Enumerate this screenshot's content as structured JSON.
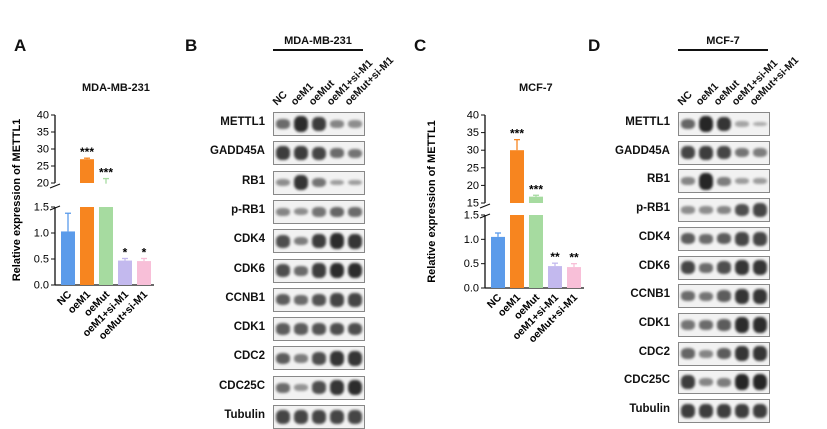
{
  "panels": {
    "A": {
      "letter": "A",
      "title": "MDA-MB-231",
      "ylabel": "Relative expression of METTL1",
      "upper_ticks": [
        "40",
        "35",
        "30",
        "25",
        "20"
      ],
      "lower_ticks": [
        "1.5",
        "1.0",
        "0.5",
        "0.0"
      ],
      "chart_data": {
        "type": "bar",
        "categories": [
          "NC",
          "oeM1",
          "oeMut",
          "oeM1+si-M1",
          "oeMut+si-M1"
        ],
        "values": [
          1.03,
          27.0,
          19.8,
          0.47,
          0.46
        ],
        "errors": [
          0.35,
          0.3,
          1.5,
          0.04,
          0.05
        ],
        "significance": [
          "",
          "***",
          "***",
          "*",
          "*"
        ],
        "colors": [
          "#5b9bea",
          "#f7851f",
          "#a6dba0",
          "#c3b9ee",
          "#f8bfd8"
        ],
        "broken_axis": {
          "lower": [
            0,
            1.5
          ],
          "upper": [
            20,
            40
          ]
        }
      }
    },
    "C": {
      "letter": "C",
      "title": "MCF-7",
      "ylabel": "Relative expression of METTL1",
      "upper_ticks": [
        "40",
        "35",
        "30",
        "25",
        "20",
        "15"
      ],
      "lower_ticks": [
        "1.5",
        "1.0",
        "0.5",
        "0.0"
      ],
      "chart_data": {
        "type": "bar",
        "categories": [
          "NC",
          "oeM1",
          "oeMut",
          "oeM1+si-M1",
          "oeMut+si-M1"
        ],
        "values": [
          1.05,
          30.0,
          16.8,
          0.45,
          0.43
        ],
        "errors": [
          0.08,
          3.0,
          0.4,
          0.06,
          0.07
        ],
        "significance": [
          "",
          "***",
          "***",
          "**",
          "**"
        ],
        "colors": [
          "#5b9bea",
          "#f7851f",
          "#a6dba0",
          "#c3b9ee",
          "#f8bfd8"
        ],
        "broken_axis": {
          "lower": [
            0,
            1.5
          ],
          "upper": [
            15,
            40
          ]
        }
      }
    },
    "B": {
      "letter": "B",
      "cell_line": "MDA-MB-231",
      "lanes": [
        "NC",
        "oeM1",
        "oeMut",
        "oeM1+si-M1",
        "oeMut+si-M1"
      ],
      "rows": [
        {
          "label": "METTL1",
          "bands": [
            0.5,
            0.9,
            0.8,
            0.35,
            0.3
          ]
        },
        {
          "label": "GADD45A",
          "bands": [
            0.8,
            0.8,
            0.75,
            0.5,
            0.45
          ]
        },
        {
          "label": "RB1",
          "bands": [
            0.3,
            0.85,
            0.45,
            0.2,
            0.2
          ]
        },
        {
          "label": "p-RB1",
          "bands": [
            0.35,
            0.3,
            0.45,
            0.55,
            0.5
          ]
        },
        {
          "label": "CDK4",
          "bands": [
            0.7,
            0.4,
            0.8,
            0.9,
            0.85
          ]
        },
        {
          "label": "CDK6",
          "bands": [
            0.7,
            0.5,
            0.8,
            0.9,
            0.9
          ]
        },
        {
          "label": "CCNB1",
          "bands": [
            0.6,
            0.5,
            0.65,
            0.75,
            0.75
          ]
        },
        {
          "label": "CDK1",
          "bands": [
            0.6,
            0.6,
            0.65,
            0.7,
            0.7
          ]
        },
        {
          "label": "CDC2",
          "bands": [
            0.6,
            0.4,
            0.7,
            0.85,
            0.85
          ]
        },
        {
          "label": "CDC25C",
          "bands": [
            0.5,
            0.25,
            0.7,
            0.85,
            0.9
          ]
        },
        {
          "label": "Tubulin",
          "bands": [
            0.75,
            0.75,
            0.75,
            0.75,
            0.75
          ]
        }
      ]
    },
    "D": {
      "letter": "D",
      "cell_line": "MCF-7",
      "lanes": [
        "NC",
        "oeM1",
        "oeMut",
        "oeM1+si-M1",
        "oeMut+si-M1"
      ],
      "rows": [
        {
          "label": "METTL1",
          "bands": [
            0.55,
            0.95,
            0.85,
            0.15,
            0.1
          ]
        },
        {
          "label": "GADD45A",
          "bands": [
            0.75,
            0.8,
            0.75,
            0.45,
            0.4
          ]
        },
        {
          "label": "RB1",
          "bands": [
            0.35,
            0.95,
            0.4,
            0.2,
            0.2
          ]
        },
        {
          "label": "p-RB1",
          "bands": [
            0.3,
            0.3,
            0.35,
            0.7,
            0.75
          ]
        },
        {
          "label": "CDK4",
          "bands": [
            0.6,
            0.5,
            0.6,
            0.75,
            0.75
          ]
        },
        {
          "label": "CDK6",
          "bands": [
            0.75,
            0.5,
            0.7,
            0.85,
            0.85
          ]
        },
        {
          "label": "CCNB1",
          "bands": [
            0.5,
            0.45,
            0.6,
            0.85,
            0.85
          ]
        },
        {
          "label": "CDK1",
          "bands": [
            0.45,
            0.5,
            0.6,
            0.9,
            0.9
          ]
        },
        {
          "label": "CDC2",
          "bands": [
            0.55,
            0.35,
            0.6,
            0.85,
            0.85
          ]
        },
        {
          "label": "CDC25C",
          "bands": [
            0.8,
            0.35,
            0.4,
            0.95,
            0.95
          ]
        },
        {
          "label": "Tubulin",
          "bands": [
            0.8,
            0.8,
            0.8,
            0.8,
            0.8
          ]
        }
      ]
    }
  }
}
